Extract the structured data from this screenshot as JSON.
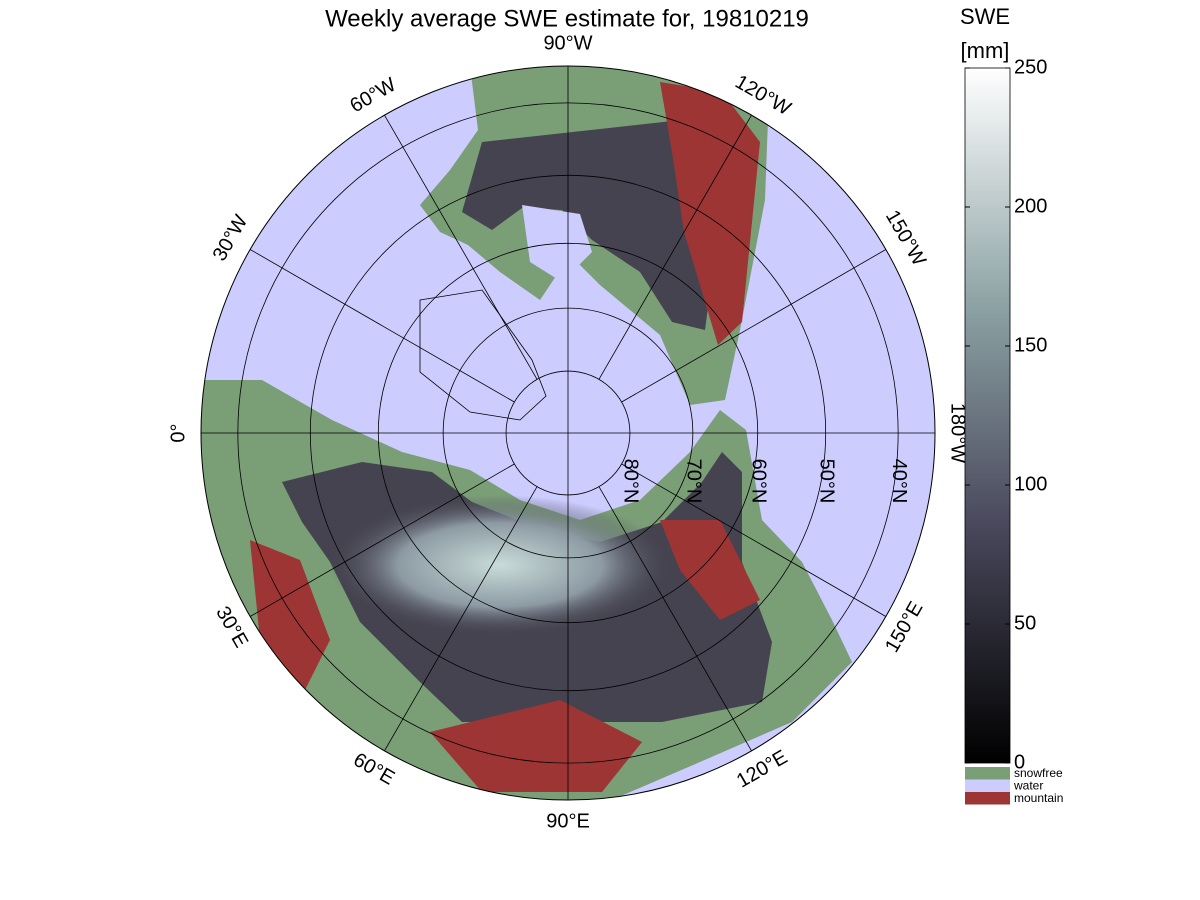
{
  "title": "Weekly average SWE estimate for, 19810219",
  "map": {
    "meridians": [
      {
        "value": -90,
        "label": "90°W"
      },
      {
        "value": -120,
        "label": "120°W"
      },
      {
        "value": -150,
        "label": "150°W"
      },
      {
        "value": 180,
        "label": "180°W"
      },
      {
        "value": 150,
        "label": "150°E"
      },
      {
        "value": 120,
        "label": "120°E"
      },
      {
        "value": 90,
        "label": "90°E"
      },
      {
        "value": 60,
        "label": "60°E"
      },
      {
        "value": 30,
        "label": "30°E"
      },
      {
        "value": 0,
        "label": "0°"
      },
      {
        "value": -30,
        "label": "30°W"
      },
      {
        "value": -60,
        "label": "60°W"
      }
    ],
    "parallels": [
      {
        "value": 80,
        "label": "80°N"
      },
      {
        "value": 70,
        "label": "70°N"
      },
      {
        "value": 60,
        "label": "60°N"
      },
      {
        "value": 50,
        "label": "50°N"
      },
      {
        "value": 40,
        "label": "40°N"
      }
    ]
  },
  "colorbar": {
    "title": "SWE",
    "unit": "[mm]",
    "lim": [
      0,
      250
    ],
    "ticks": [
      0,
      50,
      100,
      150,
      200,
      250
    ]
  },
  "legend": [
    {
      "name": "snowfree",
      "color": "#7a9e76"
    },
    {
      "name": "water",
      "color": "#ccccff"
    },
    {
      "name": "mountain",
      "color": "#9e3535"
    }
  ]
}
